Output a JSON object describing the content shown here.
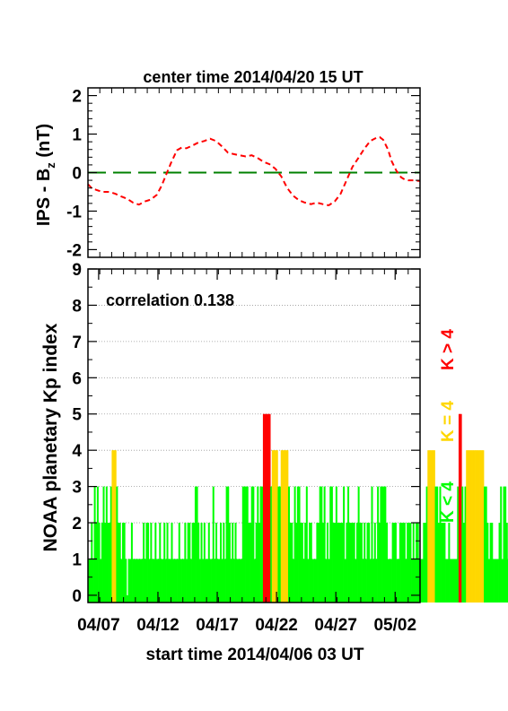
{
  "chart_data": [
    {
      "type": "line",
      "title": "center time 2014/04/20 15 UT",
      "ylabel": "IPS - B",
      "ylabel_sub": "z",
      "ylabel_unit": " (nT)",
      "ylim": [
        -2.2,
        2.2
      ],
      "yticks": [
        "2",
        "1",
        "0",
        "-1",
        "-2"
      ],
      "xlim": [
        0,
        28
      ],
      "reference_line": {
        "y": 0,
        "color": "#008000",
        "style": "long-dash"
      },
      "series": [
        {
          "color": "#ff0000",
          "style": "dashed",
          "x": [
            0,
            0.3,
            0.7,
            1.2,
            1.8,
            2.3,
            2.8,
            3.3,
            3.8,
            4.3,
            4.8,
            5.3,
            5.8,
            6.2,
            6.6,
            7.0,
            7.5,
            7.9,
            8.3,
            8.8,
            9.3,
            9.8,
            10.3,
            10.8,
            11.3,
            11.8,
            12.3,
            12.8,
            13.3,
            13.8,
            14.3,
            14.8,
            15.3,
            15.8,
            16.3,
            16.8,
            17.3,
            17.8,
            18.3,
            18.8,
            19.3,
            19.8,
            20.3,
            20.8,
            21.3,
            21.8,
            22.3,
            22.8,
            23.3,
            23.8,
            24.3,
            24.6,
            24.9,
            25.3,
            25.6,
            26.0,
            26.4,
            26.7,
            27.0,
            27.5,
            28.0
          ],
          "y": [
            -0.3,
            -0.4,
            -0.45,
            -0.5,
            -0.5,
            -0.55,
            -0.62,
            -0.68,
            -0.78,
            -0.83,
            -0.75,
            -0.7,
            -0.58,
            -0.35,
            -0.05,
            0.25,
            0.58,
            0.65,
            0.63,
            0.7,
            0.78,
            0.82,
            0.88,
            0.82,
            0.68,
            0.52,
            0.48,
            0.45,
            0.42,
            0.45,
            0.38,
            0.28,
            0.22,
            0.1,
            -0.1,
            -0.4,
            -0.6,
            -0.72,
            -0.78,
            -0.82,
            -0.78,
            -0.82,
            -0.85,
            -0.75,
            -0.55,
            -0.2,
            0.15,
            0.38,
            0.62,
            0.82,
            0.9,
            0.92,
            0.85,
            0.6,
            0.3,
            0.05,
            -0.12,
            -0.18,
            -0.2,
            -0.2,
            -0.22
          ]
        }
      ]
    },
    {
      "type": "bar",
      "ylabel": "NOAA planetary Kp index",
      "xlabel": "start time 2014/04/06 03 UT",
      "annotation": "correlation 0.138",
      "ylim": [
        -0.2,
        9
      ],
      "yticks": [
        "0",
        "1",
        "2",
        "3",
        "4",
        "5",
        "6",
        "7",
        "8",
        "9"
      ],
      "xlim": [
        0,
        28
      ],
      "xticks": [
        {
          "x": 0.9,
          "label": "04/07"
        },
        {
          "x": 5.9,
          "label": "04/12"
        },
        {
          "x": 10.9,
          "label": "04/17"
        },
        {
          "x": 15.9,
          "label": "04/22"
        },
        {
          "x": 20.9,
          "label": "04/27"
        },
        {
          "x": 25.9,
          "label": "05/02"
        }
      ],
      "bar_width": 0.125,
      "values": [
        1,
        1,
        2,
        1,
        3,
        2,
        3,
        2,
        1,
        2,
        3,
        2,
        3,
        2,
        2,
        3,
        4,
        4,
        4,
        3,
        2,
        2,
        1,
        2,
        2,
        1,
        0,
        1,
        1,
        2,
        1,
        1,
        1,
        1,
        1,
        1,
        1,
        2,
        1,
        2,
        2,
        1,
        2,
        1,
        1,
        2,
        1,
        1,
        2,
        1,
        1,
        2,
        1,
        2,
        1,
        1,
        2,
        1,
        1,
        1,
        1,
        2,
        1,
        1,
        1,
        2,
        1,
        2,
        2,
        1,
        2,
        2,
        3,
        3,
        2,
        1,
        2,
        1,
        2,
        1,
        1,
        2,
        1,
        1,
        3,
        1,
        2,
        1,
        1,
        2,
        1,
        2,
        1,
        3,
        3,
        2,
        1,
        2,
        1,
        2,
        1,
        1,
        1,
        1,
        3,
        3,
        3,
        3,
        2,
        2,
        3,
        3,
        1,
        2,
        3,
        2,
        3,
        3,
        5,
        5,
        5,
        5,
        5,
        3,
        4,
        4,
        4,
        4,
        3,
        3,
        4,
        4,
        4,
        4,
        4,
        3,
        2,
        2,
        1,
        3,
        2,
        3,
        3,
        2,
        2,
        1,
        2,
        3,
        1,
        2,
        2,
        1,
        1,
        1,
        2,
        2,
        3,
        3,
        2,
        3,
        1,
        2,
        1,
        3,
        3,
        2,
        2,
        3,
        2,
        2,
        2,
        2,
        3,
        1,
        2,
        3,
        2,
        2,
        2,
        2,
        1,
        2,
        3,
        2,
        2,
        1,
        2,
        1,
        2,
        2,
        1,
        3,
        1,
        2,
        1,
        3,
        2,
        3,
        3,
        3,
        3,
        2,
        1,
        1,
        1,
        2,
        2,
        2,
        1,
        1,
        2,
        2,
        2,
        2,
        1,
        2,
        2,
        2,
        1,
        2,
        1,
        2,
        2,
        1,
        1,
        1,
        2,
        2,
        3,
        4,
        4,
        4,
        4,
        4,
        3,
        3,
        2,
        3,
        2,
        2,
        2,
        1,
        1,
        2,
        1,
        1,
        1,
        1,
        1,
        3,
        5,
        5,
        3,
        2,
        3,
        4,
        4,
        4,
        4,
        4,
        4,
        4,
        4,
        4,
        4,
        4,
        4,
        3,
        3,
        2,
        1,
        2,
        2,
        1,
        1,
        1,
        1,
        2,
        3,
        1,
        3,
        3,
        2,
        1,
        1,
        3,
        2,
        1,
        1,
        1,
        1,
        1,
        2,
        2,
        1,
        2,
        1,
        1,
        1,
        2,
        1,
        1,
        1,
        2,
        1,
        1,
        1,
        2,
        1,
        2,
        2,
        2,
        1,
        1,
        2,
        3,
        2,
        1,
        2,
        2,
        2,
        3,
        2,
        2,
        1,
        2,
        2,
        2,
        1,
        2,
        2,
        2,
        3,
        3,
        2,
        2,
        3,
        2,
        1,
        2,
        2,
        2,
        2,
        2,
        2,
        2,
        2,
        2,
        2,
        2,
        1,
        2,
        2,
        3,
        2,
        2,
        1,
        2,
        2,
        2,
        1,
        1,
        3,
        2,
        1,
        2,
        2,
        2,
        2,
        3,
        3,
        1,
        3,
        2,
        2,
        3,
        2,
        2,
        2,
        2,
        1,
        2,
        3,
        3,
        2,
        2,
        2,
        2,
        2,
        3,
        3,
        3,
        2,
        1,
        1,
        1,
        2,
        2,
        1,
        3,
        3,
        2,
        1,
        1,
        2,
        2,
        1,
        1,
        1,
        1,
        1,
        2,
        2,
        2,
        1,
        2,
        1,
        1,
        1,
        2,
        2,
        2,
        2,
        1,
        1,
        1,
        3,
        4,
        4,
        4,
        3,
        3,
        4,
        4,
        4,
        3,
        3,
        4,
        3,
        3,
        2,
        2,
        2,
        3,
        2,
        2,
        2,
        1,
        2,
        1,
        2,
        2,
        1,
        1,
        2,
        1,
        2,
        2,
        1,
        1,
        2,
        1,
        1,
        2,
        1,
        2,
        2,
        1,
        1,
        1,
        1,
        1,
        0,
        1,
        1,
        1,
        1,
        1,
        2,
        3,
        3,
        4,
        4,
        4,
        3,
        3,
        3,
        2,
        2,
        2,
        2,
        2,
        2,
        2
      ],
      "legend": [
        {
          "label": "K < 4",
          "color": "#00ff00"
        },
        {
          "label": "K = 4",
          "color": "#ffd700"
        },
        {
          "label": "K > 4",
          "color": "#ff0000"
        }
      ],
      "legend_position": "right",
      "grid": true
    }
  ]
}
